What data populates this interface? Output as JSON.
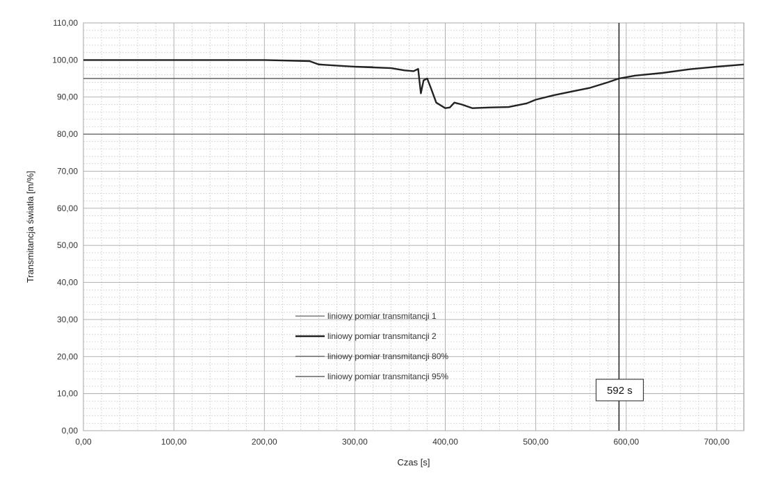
{
  "chart_data": {
    "type": "line",
    "title": "",
    "xlabel": "Czas [s]",
    "ylabel": "Transmitancja światła [m/%]",
    "xlim": [
      0,
      730
    ],
    "ylim": [
      0,
      110
    ],
    "xticks": [
      0,
      100,
      200,
      300,
      400,
      500,
      600,
      700
    ],
    "yticks": [
      0,
      10,
      20,
      30,
      40,
      50,
      60,
      70,
      80,
      90,
      100,
      110
    ],
    "xtick_labels": [
      "0,00",
      "100,00",
      "200,00",
      "300,00",
      "400,00",
      "500,00",
      "600,00",
      "700,00"
    ],
    "ytick_labels": [
      "0,00",
      "10,00",
      "20,00",
      "30,00",
      "40,00",
      "50,00",
      "60,00",
      "70,00",
      "80,00",
      "90,00",
      "100,00",
      "110,00"
    ],
    "grid": true,
    "legend_position": "center-left",
    "series": [
      {
        "name": "liniowy pomiar transmitancji 1",
        "color": "#7a7a7a",
        "x": [
          0,
          100,
          200,
          250,
          258,
          270,
          290,
          300,
          320
        ],
        "y": [
          100,
          100,
          100,
          99.7,
          99,
          98.6,
          98.3,
          98.2,
          98.2
        ]
      },
      {
        "name": "liniowy pomiar transmitancji 2",
        "color": "#222222",
        "x": [
          0,
          100,
          200,
          250,
          260,
          280,
          300,
          320,
          340,
          355,
          365,
          370,
          373,
          376,
          380,
          384,
          390,
          400,
          405,
          410,
          418,
          430,
          450,
          470,
          490,
          500,
          520,
          540,
          560,
          580,
          592,
          610,
          640,
          670,
          700,
          730
        ],
        "y": [
          100,
          100,
          100,
          99.7,
          98.8,
          98.5,
          98.2,
          98,
          97.8,
          97.2,
          97,
          97.6,
          91,
          94.5,
          95,
          92.5,
          88.5,
          87,
          87.2,
          88.5,
          88,
          87,
          87.2,
          87.3,
          88.3,
          89.3,
          90.5,
          91.5,
          92.5,
          94,
          95,
          95.8,
          96.5,
          97.5,
          98.2,
          98.8
        ]
      },
      {
        "name": "liniowy pomiar transmitancji 80%",
        "color": "#555555",
        "x": [
          0,
          730
        ],
        "y": [
          80,
          80
        ]
      },
      {
        "name": "liniowy pomiar transmitancji 95%",
        "color": "#444444",
        "x": [
          0,
          730
        ],
        "y": [
          95,
          95
        ]
      }
    ],
    "annotations": [
      {
        "type": "vline",
        "x": 592,
        "label": "592 s"
      }
    ]
  }
}
